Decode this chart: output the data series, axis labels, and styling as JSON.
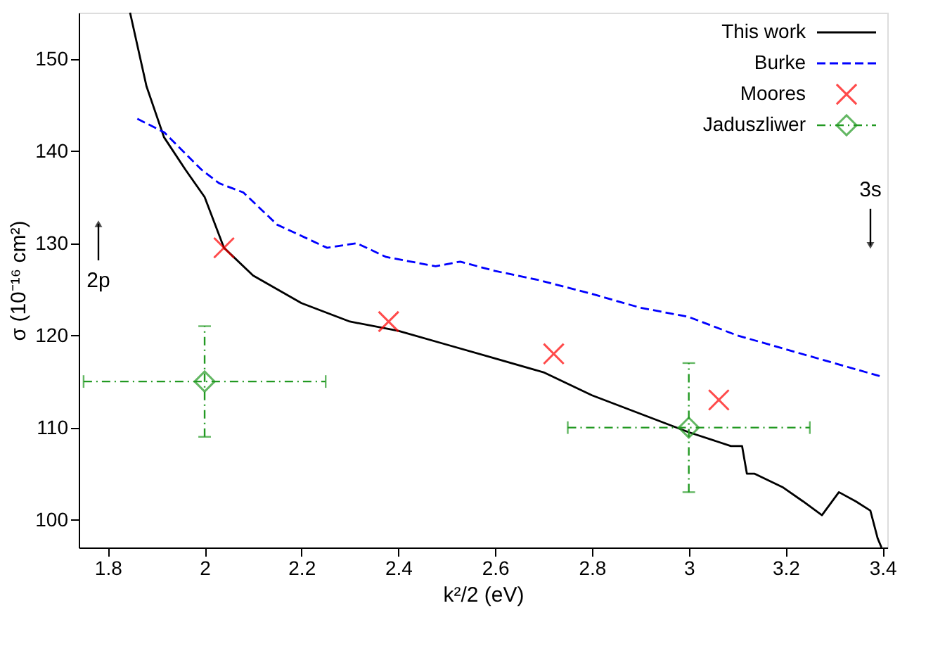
{
  "chart_data": {
    "type": "line",
    "xlabel": "k²/2 (eV)",
    "ylabel": "σ (10⁻¹⁶ cm²)",
    "xlim": [
      1.74,
      3.41
    ],
    "ylim": [
      97,
      155
    ],
    "xticks": [
      1.8,
      {
        "value": 2,
        "label": "2"
      },
      2.2,
      2.4,
      2.6,
      2.8,
      {
        "value": 3,
        "label": "3"
      },
      3.2,
      3.4
    ],
    "yticks": [
      100,
      110,
      120,
      130,
      140,
      150
    ],
    "grid": false,
    "legend": "top right",
    "annotations": [
      "2p",
      "3s"
    ],
    "series": [
      {
        "name": "This work",
        "color": "#000000",
        "line_style": "solid",
        "x": [
          1.846,
          1.88,
          1.916,
          1.96,
          2.0,
          2.04,
          2.1,
          2.2,
          2.3,
          2.4,
          2.5,
          2.6,
          2.7,
          2.8,
          2.9,
          3.0,
          3.087,
          3.11,
          3.12,
          3.136,
          3.195,
          3.236,
          3.275,
          3.31,
          3.345,
          3.375,
          3.39,
          3.398
        ],
        "values": [
          155,
          147,
          141.5,
          138,
          135,
          129.5,
          126.5,
          123.5,
          121.5,
          120.5,
          119,
          117.5,
          116,
          113.5,
          111.5,
          109.5,
          108,
          108,
          105,
          105,
          103.5,
          102,
          100.5,
          103,
          102,
          101,
          98,
          97
        ]
      },
      {
        "name": "Burke",
        "color": "#0000ff",
        "line_style": "dashed",
        "x": [
          1.861,
          1.917,
          1.993,
          2.03,
          2.08,
          2.15,
          2.253,
          2.314,
          2.375,
          2.477,
          2.528,
          2.599,
          2.69,
          2.8,
          2.9,
          3.0,
          3.1,
          3.2,
          3.3,
          3.4
        ],
        "values": [
          143.5,
          142,
          138,
          136.5,
          135.5,
          132,
          129.5,
          130,
          128.5,
          127.5,
          128,
          127,
          126,
          124.5,
          123,
          122,
          120,
          118.5,
          117,
          115.5
        ]
      },
      {
        "name": "Moores",
        "type": "scatter",
        "color": "#ff0000",
        "marker": "cross",
        "x": [
          2.04,
          2.38,
          2.721,
          3.062
        ],
        "values": [
          129.5,
          121.5,
          118,
          113
        ]
      },
      {
        "name": "Jaduszliwer",
        "type": "scatter",
        "color": "#229922",
        "marker": "diamond",
        "x": [
          2,
          3
        ],
        "values": [
          115,
          110
        ],
        "errors": [
          [
            109,
            121
          ],
          [
            103,
            117
          ]
        ],
        "xerrors": [
          [
            1.75,
            2.25
          ],
          [
            2.75,
            3.25
          ]
        ]
      }
    ]
  }
}
